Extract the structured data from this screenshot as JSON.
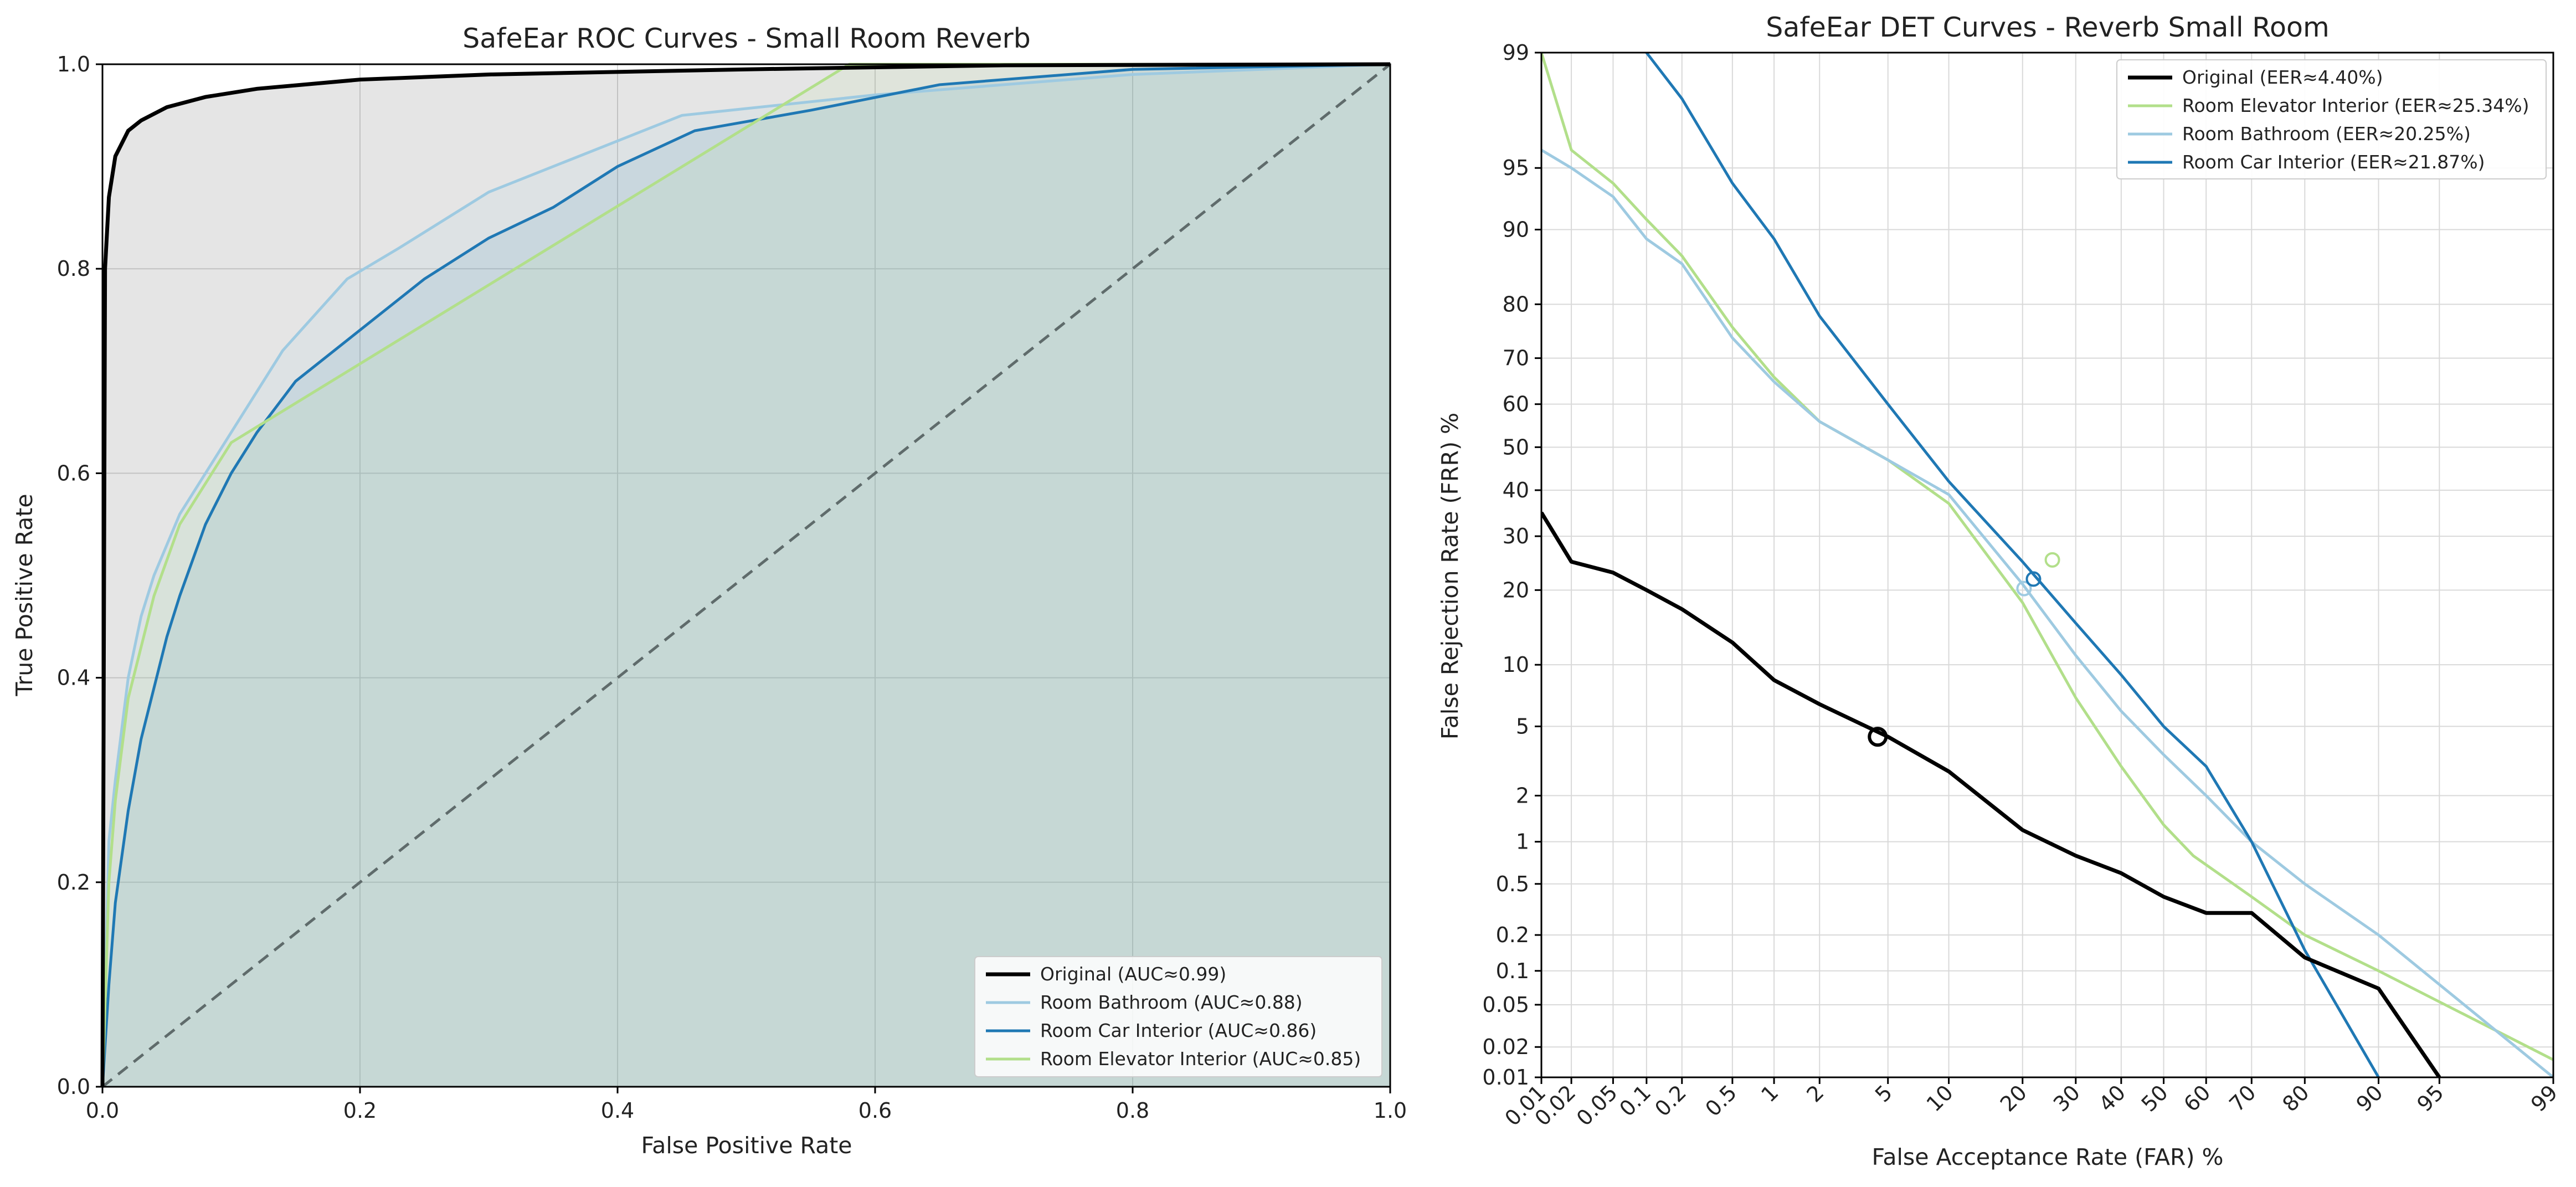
{
  "chart_data": [
    {
      "type": "line",
      "title": "SafeEar ROC Curves - Small Room Reverb",
      "xlabel": "False Positive Rate",
      "ylabel": "True Positive Rate",
      "xlim": [
        0,
        1
      ],
      "ylim": [
        0,
        1
      ],
      "x_ticks": [
        "0.0",
        "0.2",
        "0.4",
        "0.6",
        "0.8",
        "1.0"
      ],
      "y_ticks": [
        "0.0",
        "0.2",
        "0.4",
        "0.6",
        "0.8",
        "1.0"
      ],
      "grid": true,
      "legend_position": "lower-right",
      "diagonal_reference": true,
      "series": [
        {
          "name": "Original (AUC≈0.99)",
          "color": "#000000",
          "x": [
            0,
            0.002,
            0.005,
            0.01,
            0.02,
            0.03,
            0.05,
            0.08,
            0.12,
            0.2,
            0.3,
            0.5,
            0.7,
            1.0
          ],
          "y": [
            0,
            0.8,
            0.87,
            0.91,
            0.935,
            0.945,
            0.958,
            0.968,
            0.976,
            0.985,
            0.99,
            0.995,
            0.999,
            1.0
          ]
        },
        {
          "name": "Room Bathroom (AUC≈0.88)",
          "color": "#9ecae1",
          "x": [
            0,
            0.005,
            0.01,
            0.02,
            0.03,
            0.04,
            0.06,
            0.08,
            0.1,
            0.14,
            0.19,
            0.23,
            0.3,
            0.45,
            0.6,
            0.8,
            1.0
          ],
          "y": [
            0,
            0.24,
            0.3,
            0.4,
            0.46,
            0.5,
            0.56,
            0.6,
            0.64,
            0.72,
            0.79,
            0.82,
            0.875,
            0.95,
            0.97,
            0.99,
            1.0
          ]
        },
        {
          "name": "Room Car Interior (AUC≈0.86)",
          "color": "#1f78b4",
          "x": [
            0,
            0.005,
            0.01,
            0.02,
            0.03,
            0.04,
            0.05,
            0.06,
            0.08,
            0.1,
            0.12,
            0.15,
            0.2,
            0.25,
            0.3,
            0.35,
            0.4,
            0.46,
            0.55,
            0.65,
            0.8,
            1.0
          ],
          "y": [
            0,
            0.1,
            0.18,
            0.27,
            0.34,
            0.39,
            0.44,
            0.48,
            0.55,
            0.6,
            0.64,
            0.69,
            0.74,
            0.79,
            0.83,
            0.86,
            0.9,
            0.935,
            0.955,
            0.98,
            0.995,
            1.0
          ]
        },
        {
          "name": "Room Elevator Interior (AUC≈0.85)",
          "color": "#b2df8a",
          "x": [
            0,
            0.005,
            0.01,
            0.02,
            0.04,
            0.06,
            0.1,
            0.58,
            0.75,
            1.0
          ],
          "y": [
            0,
            0.2,
            0.28,
            0.38,
            0.48,
            0.55,
            0.63,
            1.0,
            1.0,
            1.0
          ]
        }
      ]
    },
    {
      "type": "line",
      "title": "SafeEar DET Curves - Reverb Small Room",
      "xlabel": "False Acceptance Rate (FAR) %",
      "ylabel": "False Rejection Rate (FRR) %",
      "scale": "probit",
      "xlim": [
        0.01,
        99
      ],
      "ylim": [
        0.01,
        99
      ],
      "x_ticks": [
        "0.01",
        "0.02",
        "0.05",
        "0.1",
        "0.2",
        "0.5",
        "1",
        "2",
        "5",
        "10",
        "20",
        "30",
        "40",
        "50",
        "60",
        "70",
        "80",
        "90",
        "95",
        "99"
      ],
      "y_ticks": [
        "0.01",
        "0.02",
        "0.05",
        "0.1",
        "0.2",
        "0.5",
        "1",
        "2",
        "5",
        "10",
        "20",
        "30",
        "40",
        "50",
        "60",
        "70",
        "80",
        "90",
        "95",
        "99"
      ],
      "grid": true,
      "legend_position": "top-right",
      "series": [
        {
          "name": "Original (EER≈4.40%)",
          "color": "#000000",
          "eer": 4.4,
          "x": [
            0.01,
            0.02,
            0.05,
            0.1,
            0.2,
            0.5,
            1,
            2,
            5,
            10,
            20,
            30,
            40,
            50,
            60,
            70,
            80,
            90,
            95
          ],
          "y": [
            35,
            25,
            23,
            20,
            17,
            12.5,
            8.5,
            6.5,
            4.4,
            2.8,
            1.2,
            0.8,
            0.6,
            0.4,
            0.3,
            0.3,
            0.13,
            0.07,
            0.01
          ]
        },
        {
          "name": "Room Elevator Interior (EER≈25.34%)",
          "color": "#b2df8a",
          "eer": 25.34,
          "x": [
            0.01,
            0.02,
            0.05,
            0.1,
            0.2,
            0.5,
            1,
            2,
            5,
            10,
            20,
            30,
            40,
            50,
            57,
            70,
            80,
            90,
            99
          ],
          "y": [
            99,
            96,
            94,
            91,
            87,
            76,
            66,
            56,
            47,
            37,
            18,
            7,
            3,
            1.3,
            0.8,
            0.4,
            0.2,
            0.1,
            0.015
          ]
        },
        {
          "name": "Room Bathroom (EER≈20.25%)",
          "color": "#9ecae1",
          "eer": 20.25,
          "x": [
            0.01,
            0.02,
            0.05,
            0.1,
            0.2,
            0.5,
            1,
            2,
            5,
            10,
            20,
            30,
            40,
            50,
            60,
            70,
            80,
            90,
            99
          ],
          "y": [
            96,
            95,
            93,
            89,
            86,
            74,
            65,
            56,
            47,
            39,
            21,
            11,
            6,
            3.5,
            2,
            1,
            0.5,
            0.2,
            0.01
          ]
        },
        {
          "name": "Room Car Interior (EER≈21.87%)",
          "color": "#1f78b4",
          "eer": 21.87,
          "x": [
            0.1,
            0.2,
            0.5,
            1,
            2,
            5,
            10,
            20,
            30,
            40,
            50,
            60,
            70,
            80,
            90
          ],
          "y": [
            99,
            98,
            94,
            89,
            78,
            60,
            42,
            25,
            15,
            9,
            5,
            3,
            1,
            0.15,
            0.01
          ]
        }
      ]
    }
  ]
}
